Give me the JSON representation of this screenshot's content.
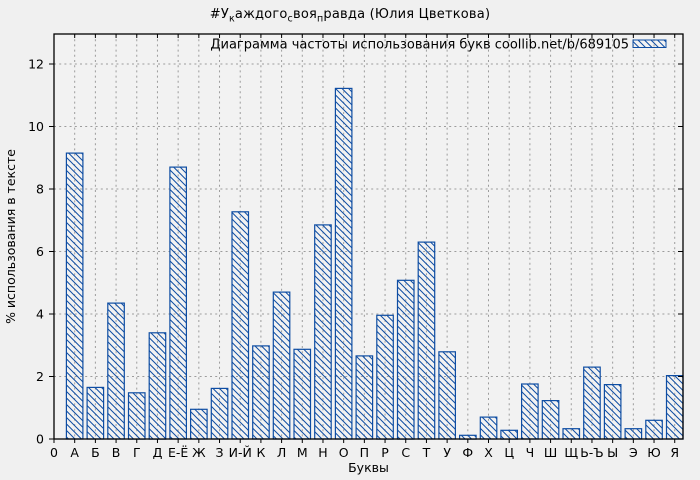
{
  "colors": {
    "background": "#f0f0f0",
    "plot_background": "#f2f2f2",
    "bar": "#0e4da3",
    "grid": "#9c9c9c",
    "border": "#000000",
    "text": "#000000"
  },
  "title_segments": [
    {
      "t": "#У"
    },
    {
      "sub": "к"
    },
    {
      "t": "аждого"
    },
    {
      "sub": "с"
    },
    {
      "t": "воя"
    },
    {
      "sub": "п"
    },
    {
      "t": "равда (Юлия Цветкова)"
    }
  ],
  "chart_data": {
    "type": "bar",
    "title": "#У_каждого_своя_правда (Юлия Цветкова)",
    "legend": "Диаграмма частоты использования букв coollib.net/b/689105",
    "legend_position": "top-right",
    "xlabel": "Буквы",
    "ylabel": "% использования в тексте",
    "x_origin_tick": "0",
    "categories": [
      "А",
      "Б",
      "В",
      "Г",
      "Д",
      "Е-Ё",
      "Ж",
      "З",
      "И-Й",
      "К",
      "Л",
      "М",
      "Н",
      "О",
      "П",
      "Р",
      "С",
      "Т",
      "У",
      "Ф",
      "Х",
      "Ц",
      "Ч",
      "Ш",
      "Щ",
      "Ь-Ъ",
      "Ы",
      "Э",
      "Ю",
      "Я"
    ],
    "values": [
      9.15,
      1.65,
      4.35,
      1.48,
      3.4,
      8.7,
      0.95,
      1.62,
      7.27,
      2.98,
      4.7,
      2.87,
      6.85,
      11.22,
      2.66,
      3.96,
      5.08,
      6.3,
      2.79,
      0.12,
      0.7,
      0.28,
      1.76,
      1.23,
      0.33,
      2.3,
      1.74,
      0.33,
      0.6,
      2.03
    ],
    "ylim": [
      0,
      13
    ],
    "yticks": [
      0,
      2,
      4,
      6,
      8,
      10,
      12
    ],
    "grid": true,
    "bar_fill": "diagonal-hatch"
  }
}
